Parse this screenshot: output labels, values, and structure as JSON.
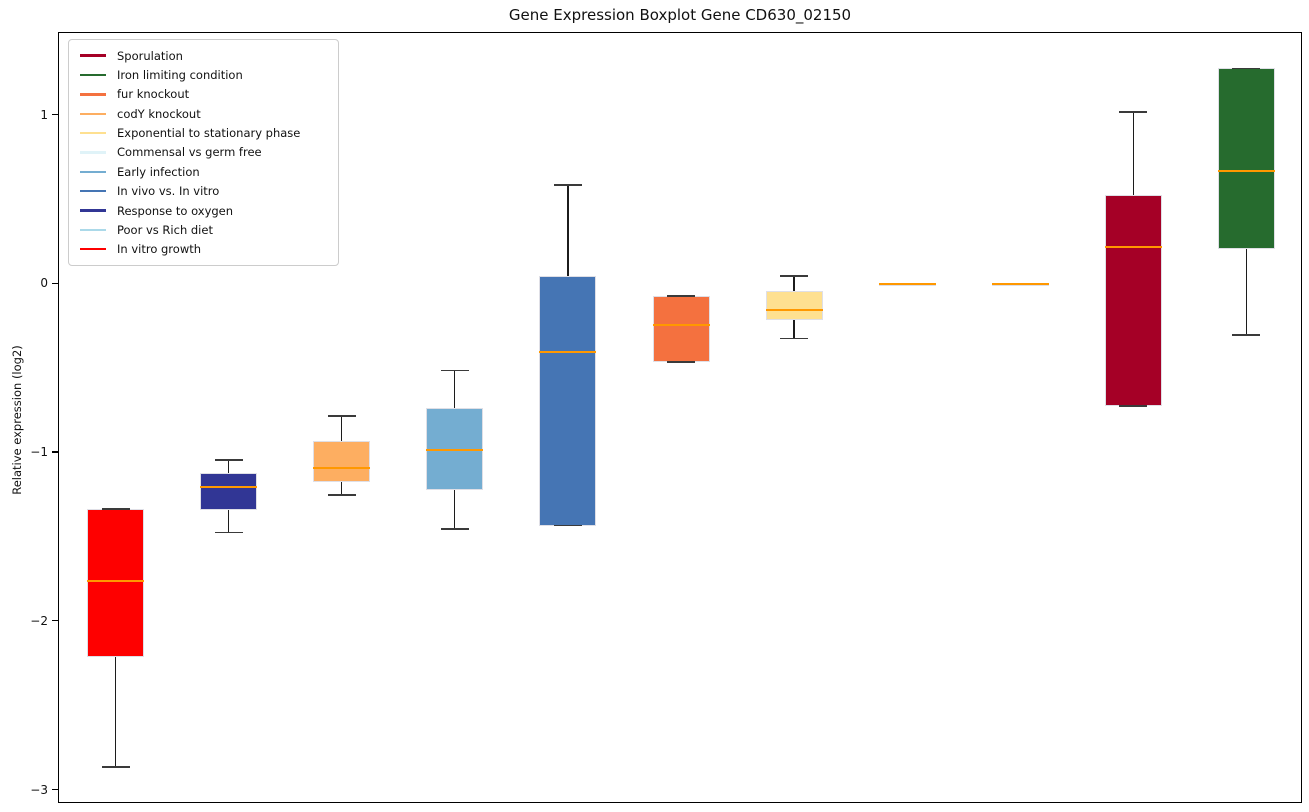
{
  "chart_data": {
    "type": "boxplot",
    "title": "Gene Expression Boxplot Gene CD630_02150",
    "xlabel": "",
    "ylabel": "Relative expression (log2)",
    "ylim": [
      -3.08,
      1.49
    ],
    "grid": false,
    "legend_position": "upper-left",
    "median_color": "#ff9800",
    "yticks": [
      {
        "value": 1,
        "label": "1"
      },
      {
        "value": 0,
        "label": "0"
      },
      {
        "value": -1,
        "label": "−1"
      },
      {
        "value": -2,
        "label": "−2"
      },
      {
        "value": -3,
        "label": "−3"
      }
    ],
    "series": [
      {
        "name": "In vitro growth",
        "color": "#fe0000",
        "whisker_low": -2.86,
        "q1": -2.21,
        "median": -1.76,
        "q3": -1.33,
        "whisker_high": -1.33
      },
      {
        "name": "Response to oxygen",
        "color": "#313695",
        "whisker_low": -1.47,
        "q1": -1.34,
        "median": -1.2,
        "q3": -1.12,
        "whisker_high": -1.04
      },
      {
        "name": "codY knockout",
        "color": "#fdae61",
        "whisker_low": -1.25,
        "q1": -1.17,
        "median": -1.09,
        "q3": -0.93,
        "whisker_high": -0.78
      },
      {
        "name": "Early infection",
        "color": "#74add1",
        "whisker_low": -1.45,
        "q1": -1.22,
        "median": -0.98,
        "q3": -0.73,
        "whisker_high": -0.51
      },
      {
        "name": "In vivo vs. In vitro",
        "color": "#4575b4",
        "whisker_low": -1.43,
        "q1": -1.43,
        "median": -0.4,
        "q3": 0.05,
        "whisker_high": 0.59
      },
      {
        "name": "fur knockout",
        "color": "#f4713f",
        "whisker_low": -0.46,
        "q1": -0.46,
        "median": -0.24,
        "q3": -0.07,
        "whisker_high": -0.07
      },
      {
        "name": "Exponential to stationary phase",
        "color": "#fee090",
        "whisker_low": -0.32,
        "q1": -0.21,
        "median": -0.15,
        "q3": -0.04,
        "whisker_high": 0.05
      },
      {
        "name": "Commensal vs germ free",
        "color": "#e0f3f8",
        "whisker_low": 0.0,
        "q1": 0.0,
        "median": 0.0,
        "q3": 0.0,
        "whisker_high": 0.0
      },
      {
        "name": "Poor vs Rich diet",
        "color": "#abd9e9",
        "whisker_low": 0.0,
        "q1": 0.0,
        "median": 0.0,
        "q3": 0.0,
        "whisker_high": 0.0
      },
      {
        "name": "Sporulation",
        "color": "#a50026",
        "whisker_low": -0.72,
        "q1": -0.72,
        "median": 0.22,
        "q3": 0.53,
        "whisker_high": 1.02
      },
      {
        "name": "Iron limiting condition",
        "color": "#266b2e",
        "whisker_low": -0.3,
        "q1": 0.21,
        "median": 0.67,
        "q3": 1.28,
        "whisker_high": 1.28
      }
    ],
    "legend": [
      {
        "label": "Sporulation",
        "color": "#a50026"
      },
      {
        "label": "Iron limiting condition",
        "color": "#266b2e"
      },
      {
        "label": "fur knockout",
        "color": "#f4713f"
      },
      {
        "label": "codY knockout",
        "color": "#fdae61"
      },
      {
        "label": "Exponential to stationary phase",
        "color": "#fee090"
      },
      {
        "label": "Commensal vs germ free",
        "color": "#e0f3f8"
      },
      {
        "label": "Early infection",
        "color": "#74add1"
      },
      {
        "label": "In vivo vs. In vitro",
        "color": "#4575b4"
      },
      {
        "label": "Response to oxygen",
        "color": "#313695"
      },
      {
        "label": "Poor vs Rich diet",
        "color": "#abd9e9"
      },
      {
        "label": "In vitro growth",
        "color": "#fe0000"
      }
    ]
  }
}
